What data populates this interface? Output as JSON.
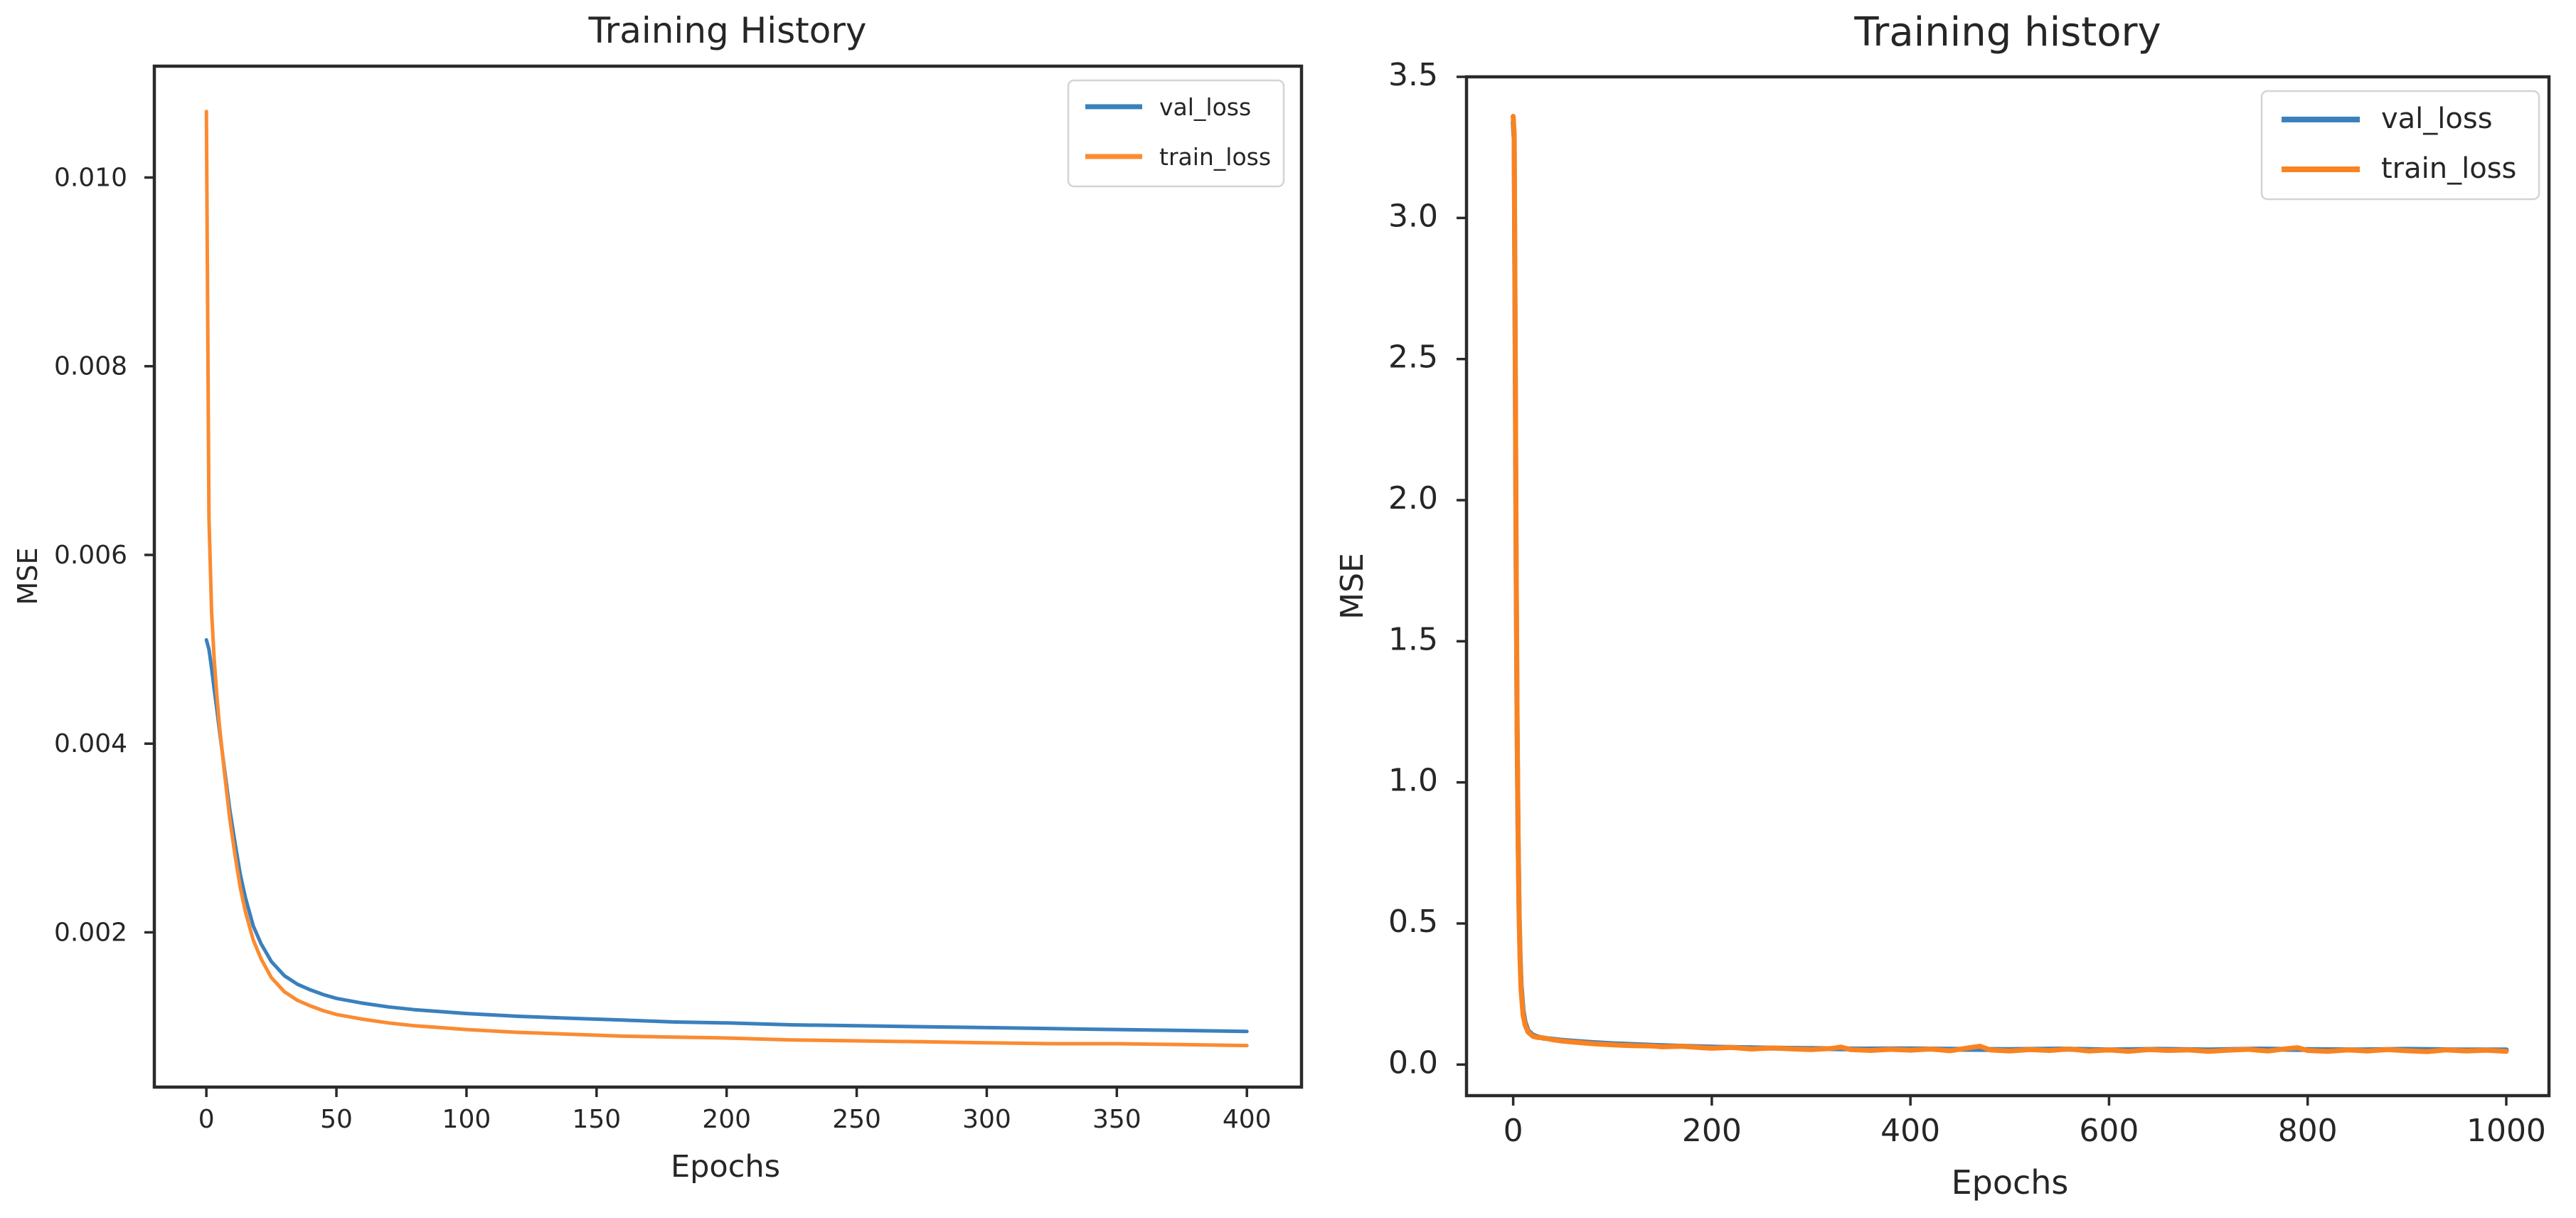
{
  "page": {
    "background": "#ffffff",
    "spine_color": "#2a2a2a",
    "text_color": "#262626",
    "legend_border_color": "#d4d4d4",
    "legend_fill": "#ffffff"
  },
  "chart_data": [
    {
      "type": "line",
      "title": "Training History",
      "xlabel": "Epochs",
      "ylabel": "MSE",
      "xlim": [
        -20,
        421
      ],
      "ylim": [
        0.00036,
        0.01118
      ],
      "xticks": [
        0,
        50,
        100,
        150,
        200,
        250,
        300,
        350,
        400
      ],
      "xtick_labels": [
        "0",
        "50",
        "100",
        "150",
        "200",
        "250",
        "300",
        "350",
        "400"
      ],
      "yticks": [
        0.002,
        0.004,
        0.006,
        0.008,
        0.01
      ],
      "ytick_labels": [
        "0.002",
        "0.004",
        "0.006",
        "0.008",
        "0.010"
      ],
      "grid": false,
      "legend": {
        "position": "upper right",
        "entries": [
          "val_loss",
          "train_loss"
        ]
      },
      "series": [
        {
          "name": "val_loss",
          "color": "#3a80bd",
          "points": [
            [
              0,
              0.0051
            ],
            [
              1,
              0.005
            ],
            [
              2,
              0.0048
            ],
            [
              3,
              0.00458
            ],
            [
              4,
              0.00437
            ],
            [
              5,
              0.00415
            ],
            [
              7,
              0.00372
            ],
            [
              9,
              0.0033
            ],
            [
              11,
              0.00295
            ],
            [
              13,
              0.00262
            ],
            [
              15,
              0.00237
            ],
            [
              18,
              0.00207
            ],
            [
              21,
              0.00188
            ],
            [
              25,
              0.00169
            ],
            [
              30,
              0.00154
            ],
            [
              35,
              0.00145
            ],
            [
              40,
              0.00139
            ],
            [
              45,
              0.00134
            ],
            [
              50,
              0.0013
            ],
            [
              60,
              0.00125
            ],
            [
              70,
              0.00121
            ],
            [
              80,
              0.00118
            ],
            [
              90,
              0.00116
            ],
            [
              100,
              0.00114
            ],
            [
              120,
              0.00111
            ],
            [
              140,
              0.00109
            ],
            [
              160,
              0.00107
            ],
            [
              180,
              0.00105
            ],
            [
              200,
              0.00104
            ],
            [
              225,
              0.00102
            ],
            [
              250,
              0.00101
            ],
            [
              275,
              0.001
            ],
            [
              300,
              0.00099
            ],
            [
              325,
              0.00098
            ],
            [
              350,
              0.00097
            ],
            [
              375,
              0.00096
            ],
            [
              400,
              0.00095
            ]
          ]
        },
        {
          "name": "train_loss",
          "color": "#fb8b31",
          "points": [
            [
              0,
              0.0107
            ],
            [
              1,
              0.0064
            ],
            [
              2,
              0.0054
            ],
            [
              3,
              0.0049
            ],
            [
              4,
              0.00452
            ],
            [
              5,
              0.0042
            ],
            [
              7,
              0.00368
            ],
            [
              9,
              0.0032
            ],
            [
              11,
              0.00282
            ],
            [
              13,
              0.00248
            ],
            [
              15,
              0.00222
            ],
            [
              18,
              0.00192
            ],
            [
              21,
              0.00172
            ],
            [
              25,
              0.00152
            ],
            [
              30,
              0.00137
            ],
            [
              35,
              0.00128
            ],
            [
              40,
              0.00122
            ],
            [
              45,
              0.00117
            ],
            [
              50,
              0.00113
            ],
            [
              60,
              0.00108
            ],
            [
              70,
              0.00104
            ],
            [
              80,
              0.00101
            ],
            [
              90,
              0.00099
            ],
            [
              100,
              0.00097
            ],
            [
              120,
              0.00094
            ],
            [
              140,
              0.00092
            ],
            [
              160,
              0.0009
            ],
            [
              180,
              0.00089
            ],
            [
              200,
              0.00088
            ],
            [
              225,
              0.00086
            ],
            [
              250,
              0.00085
            ],
            [
              275,
              0.00084
            ],
            [
              300,
              0.00083
            ],
            [
              325,
              0.00082
            ],
            [
              350,
              0.00082
            ],
            [
              375,
              0.00081
            ],
            [
              400,
              0.0008
            ]
          ]
        }
      ]
    },
    {
      "type": "line",
      "title": "Training history",
      "xlabel": "Epochs",
      "ylabel": "MSE",
      "xlim": [
        -47,
        1043
      ],
      "ylim": [
        -0.11,
        3.5
      ],
      "xticks": [
        0,
        200,
        400,
        600,
        800,
        1000
      ],
      "xtick_labels": [
        "0",
        "200",
        "400",
        "600",
        "800",
        "1000"
      ],
      "yticks": [
        0.0,
        0.5,
        1.0,
        1.5,
        2.0,
        2.5,
        3.0,
        3.5
      ],
      "ytick_labels": [
        "0.0",
        "0.5",
        "1.0",
        "1.5",
        "2.0",
        "2.5",
        "3.0",
        "3.5"
      ],
      "grid": false,
      "legend": {
        "position": "upper right",
        "entries": [
          "val_loss",
          "train_loss"
        ]
      },
      "series": [
        {
          "name": "val_loss",
          "color": "#3a80bd",
          "points": [
            [
              0,
              3.34
            ],
            [
              1,
              3.28
            ],
            [
              2,
              2.55
            ],
            [
              3,
              1.75
            ],
            [
              4,
              1.17
            ],
            [
              5,
              0.79
            ],
            [
              6,
              0.53
            ],
            [
              7,
              0.38
            ],
            [
              8,
              0.28
            ],
            [
              10,
              0.19
            ],
            [
              12,
              0.15
            ],
            [
              15,
              0.12
            ],
            [
              20,
              0.104
            ],
            [
              25,
              0.098
            ],
            [
              30,
              0.094
            ],
            [
              40,
              0.09
            ],
            [
              50,
              0.086
            ],
            [
              60,
              0.083
            ],
            [
              80,
              0.078
            ],
            [
              100,
              0.074
            ],
            [
              150,
              0.067
            ],
            [
              200,
              0.062
            ],
            [
              250,
              0.059
            ],
            [
              300,
              0.057
            ],
            [
              350,
              0.055
            ],
            [
              400,
              0.056
            ],
            [
              450,
              0.054
            ],
            [
              500,
              0.053
            ],
            [
              550,
              0.055
            ],
            [
              600,
              0.052
            ],
            [
              650,
              0.054
            ],
            [
              700,
              0.052
            ],
            [
              750,
              0.055
            ],
            [
              800,
              0.053
            ],
            [
              850,
              0.052
            ],
            [
              900,
              0.054
            ],
            [
              950,
              0.052
            ],
            [
              1000,
              0.052
            ]
          ]
        },
        {
          "name": "train_loss",
          "color": "#f98320",
          "points": [
            [
              0,
              3.36
            ],
            [
              1,
              3.3
            ],
            [
              2,
              2.6
            ],
            [
              3,
              1.8
            ],
            [
              4,
              1.2
            ],
            [
              5,
              0.8
            ],
            [
              6,
              0.52
            ],
            [
              7,
              0.36
            ],
            [
              8,
              0.26
            ],
            [
              10,
              0.175
            ],
            [
              12,
              0.14
            ],
            [
              15,
              0.115
            ],
            [
              20,
              0.1
            ],
            [
              25,
              0.096
            ],
            [
              30,
              0.095
            ],
            [
              40,
              0.088
            ],
            [
              50,
              0.083
            ],
            [
              60,
              0.08
            ],
            [
              80,
              0.074
            ],
            [
              100,
              0.07
            ],
            [
              120,
              0.067
            ],
            [
              140,
              0.066
            ],
            [
              150,
              0.063
            ],
            [
              170,
              0.065
            ],
            [
              190,
              0.06
            ],
            [
              200,
              0.058
            ],
            [
              220,
              0.061
            ],
            [
              240,
              0.055
            ],
            [
              260,
              0.059
            ],
            [
              280,
              0.056
            ],
            [
              300,
              0.053
            ],
            [
              320,
              0.057
            ],
            [
              330,
              0.062
            ],
            [
              340,
              0.053
            ],
            [
              360,
              0.05
            ],
            [
              380,
              0.054
            ],
            [
              400,
              0.051
            ],
            [
              420,
              0.055
            ],
            [
              440,
              0.049
            ],
            [
              460,
              0.06
            ],
            [
              470,
              0.065
            ],
            [
              480,
              0.052
            ],
            [
              500,
              0.048
            ],
            [
              520,
              0.053
            ],
            [
              540,
              0.05
            ],
            [
              560,
              0.055
            ],
            [
              580,
              0.048
            ],
            [
              600,
              0.052
            ],
            [
              620,
              0.047
            ],
            [
              640,
              0.053
            ],
            [
              660,
              0.05
            ],
            [
              680,
              0.052
            ],
            [
              700,
              0.047
            ],
            [
              720,
              0.051
            ],
            [
              740,
              0.054
            ],
            [
              760,
              0.048
            ],
            [
              780,
              0.057
            ],
            [
              790,
              0.06
            ],
            [
              800,
              0.05
            ],
            [
              820,
              0.047
            ],
            [
              840,
              0.052
            ],
            [
              860,
              0.048
            ],
            [
              880,
              0.053
            ],
            [
              900,
              0.049
            ],
            [
              920,
              0.046
            ],
            [
              940,
              0.052
            ],
            [
              960,
              0.048
            ],
            [
              980,
              0.051
            ],
            [
              1000,
              0.047
            ]
          ]
        }
      ]
    }
  ]
}
